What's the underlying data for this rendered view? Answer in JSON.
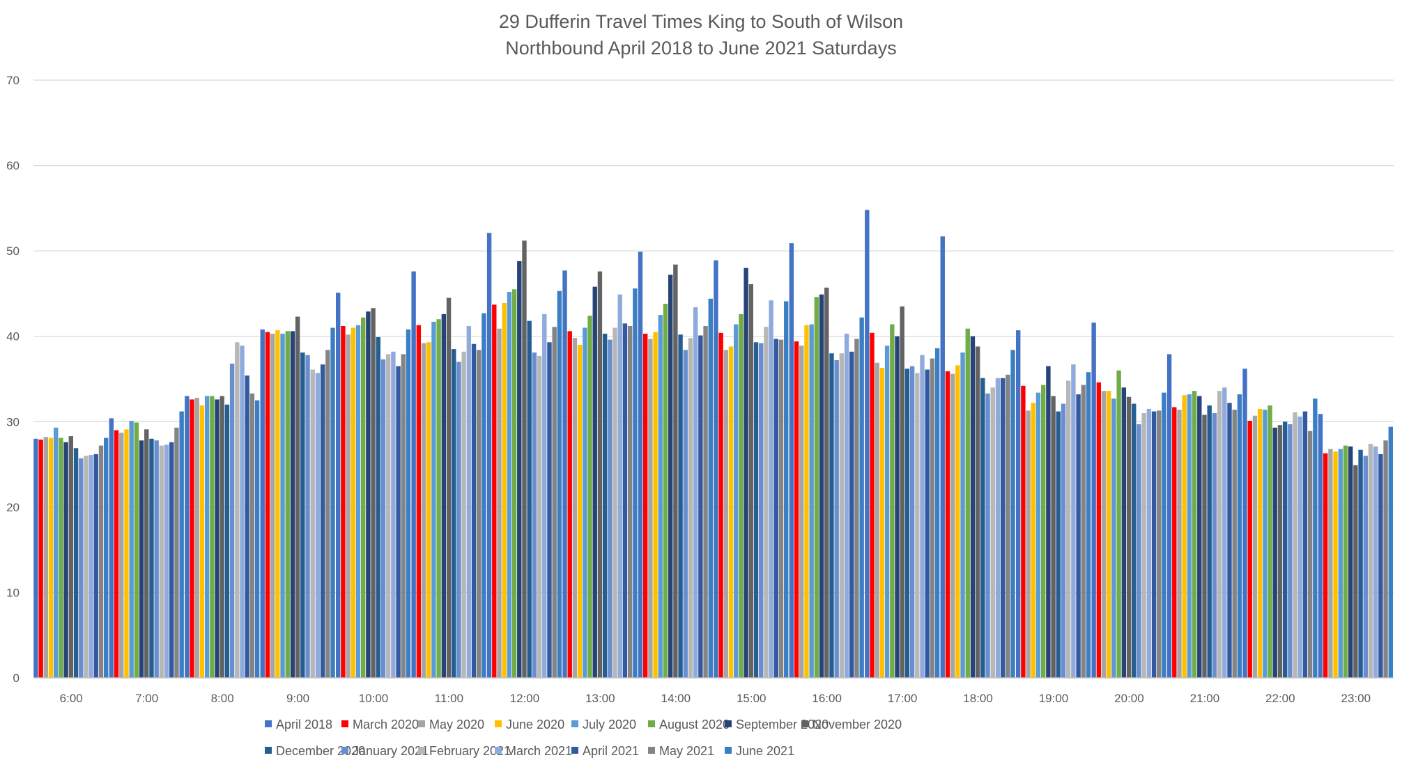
{
  "chart_data": {
    "type": "bar",
    "title": "29 Dufferin Travel Times King to South of Wilson",
    "subtitle": "Northbound April 2018 to June 2021 Saturdays",
    "xlabel": "",
    "ylabel": "",
    "ylim": [
      0,
      70
    ],
    "yticks": [
      0,
      10,
      20,
      30,
      40,
      50,
      60,
      70
    ],
    "grid": true,
    "legend_position": "bottom",
    "categories": [
      "6:00",
      "7:00",
      "8:00",
      "9:00",
      "10:00",
      "11:00",
      "12:00",
      "13:00",
      "14:00",
      "15:00",
      "16:00",
      "17:00",
      "18:00",
      "19:00",
      "20:00",
      "21:00",
      "22:00",
      "23:00"
    ],
    "series": [
      {
        "name": "April 2018",
        "color": "#4472C4",
        "values": [
          28.0,
          30.4,
          33.0,
          40.8,
          45.1,
          47.6,
          52.1,
          47.7,
          49.9,
          48.9,
          50.9,
          54.8,
          51.7,
          40.7,
          41.6,
          37.9,
          36.2,
          30.9
        ]
      },
      {
        "name": "March 2020",
        "color": "#FF0000",
        "values": [
          27.9,
          29.0,
          32.6,
          40.5,
          41.2,
          41.3,
          43.7,
          40.6,
          40.3,
          40.4,
          39.4,
          40.4,
          35.9,
          34.2,
          34.6,
          31.7,
          30.1,
          26.3
        ]
      },
      {
        "name": "May 2020",
        "color": "#A5A5A5",
        "values": [
          28.2,
          28.7,
          32.8,
          40.3,
          40.2,
          39.2,
          40.9,
          39.8,
          39.7,
          38.4,
          38.9,
          36.9,
          35.6,
          31.3,
          33.6,
          31.4,
          30.7,
          26.8
        ]
      },
      {
        "name": "June 2020",
        "color": "#FFC000",
        "values": [
          28.1,
          29.1,
          31.9,
          40.7,
          41.0,
          39.3,
          43.9,
          39.0,
          40.5,
          38.8,
          41.3,
          36.3,
          36.6,
          32.2,
          33.6,
          33.1,
          31.5,
          26.5
        ]
      },
      {
        "name": "July 2020",
        "color": "#5B9BD5",
        "values": [
          29.3,
          30.1,
          33.0,
          40.3,
          41.3,
          41.7,
          45.2,
          41.0,
          42.5,
          41.4,
          41.4,
          38.9,
          38.1,
          33.4,
          32.7,
          33.2,
          31.4,
          26.8
        ]
      },
      {
        "name": "August 2020",
        "color": "#70AD47",
        "values": [
          28.1,
          29.9,
          33.0,
          40.6,
          42.2,
          42.0,
          45.5,
          42.4,
          43.8,
          42.6,
          44.6,
          41.4,
          40.9,
          34.3,
          36.0,
          33.6,
          31.9,
          27.2
        ]
      },
      {
        "name": "September 2020",
        "color": "#264478",
        "values": [
          27.6,
          27.8,
          32.6,
          40.6,
          42.9,
          42.6,
          48.8,
          45.8,
          47.2,
          48.0,
          44.9,
          40.0,
          40.0,
          36.5,
          34.0,
          33.0,
          29.3,
          27.1
        ]
      },
      {
        "name": "November 2020",
        "color": "#636363",
        "values": [
          28.3,
          29.1,
          33.0,
          42.3,
          43.3,
          44.5,
          51.2,
          47.6,
          48.4,
          46.1,
          45.7,
          43.5,
          38.8,
          33.0,
          32.9,
          30.8,
          29.6,
          24.9
        ]
      },
      {
        "name": "December 2020",
        "color": "#255E91",
        "values": [
          26.9,
          28.0,
          32.0,
          38.1,
          39.9,
          38.5,
          41.8,
          40.3,
          40.2,
          39.3,
          38.0,
          36.2,
          35.1,
          31.2,
          32.1,
          31.9,
          30.0,
          26.7
        ]
      },
      {
        "name": "January 2021",
        "color": "#698ED0",
        "values": [
          25.7,
          27.8,
          36.8,
          37.8,
          37.3,
          37.0,
          38.1,
          39.6,
          38.4,
          39.2,
          37.2,
          36.5,
          33.3,
          32.1,
          29.7,
          31.0,
          29.7,
          26.0
        ]
      },
      {
        "name": "February 2021",
        "color": "#B7B7B7",
        "values": [
          26.0,
          27.2,
          39.3,
          36.1,
          37.9,
          38.2,
          37.7,
          41.0,
          39.8,
          41.1,
          38.0,
          35.7,
          34.0,
          34.8,
          31.0,
          33.6,
          31.1,
          27.4
        ]
      },
      {
        "name": "March 2021",
        "color": "#8FAADC",
        "values": [
          26.1,
          27.3,
          38.9,
          35.7,
          38.2,
          41.2,
          42.6,
          44.9,
          43.4,
          44.2,
          40.3,
          37.8,
          35.1,
          36.7,
          31.5,
          34.0,
          30.6,
          27.1
        ]
      },
      {
        "name": "April 2021",
        "color": "#335AA1",
        "values": [
          26.2,
          27.6,
          35.4,
          36.7,
          36.5,
          39.1,
          39.3,
          41.5,
          40.1,
          39.7,
          38.2,
          36.1,
          35.1,
          33.2,
          31.2,
          32.2,
          31.2,
          26.2
        ]
      },
      {
        "name": "May 2021",
        "color": "#848484",
        "values": [
          27.2,
          29.3,
          33.3,
          38.4,
          37.9,
          38.4,
          41.1,
          41.2,
          41.2,
          39.6,
          39.7,
          37.4,
          35.5,
          34.3,
          31.3,
          31.4,
          28.9,
          27.8
        ]
      },
      {
        "name": "June 2021",
        "color": "#3A7FC4",
        "values": [
          28.1,
          31.2,
          32.5,
          41.0,
          40.8,
          42.7,
          45.3,
          45.6,
          44.4,
          44.1,
          42.2,
          38.6,
          38.4,
          35.8,
          33.4,
          33.2,
          32.7,
          29.4
        ]
      }
    ]
  }
}
